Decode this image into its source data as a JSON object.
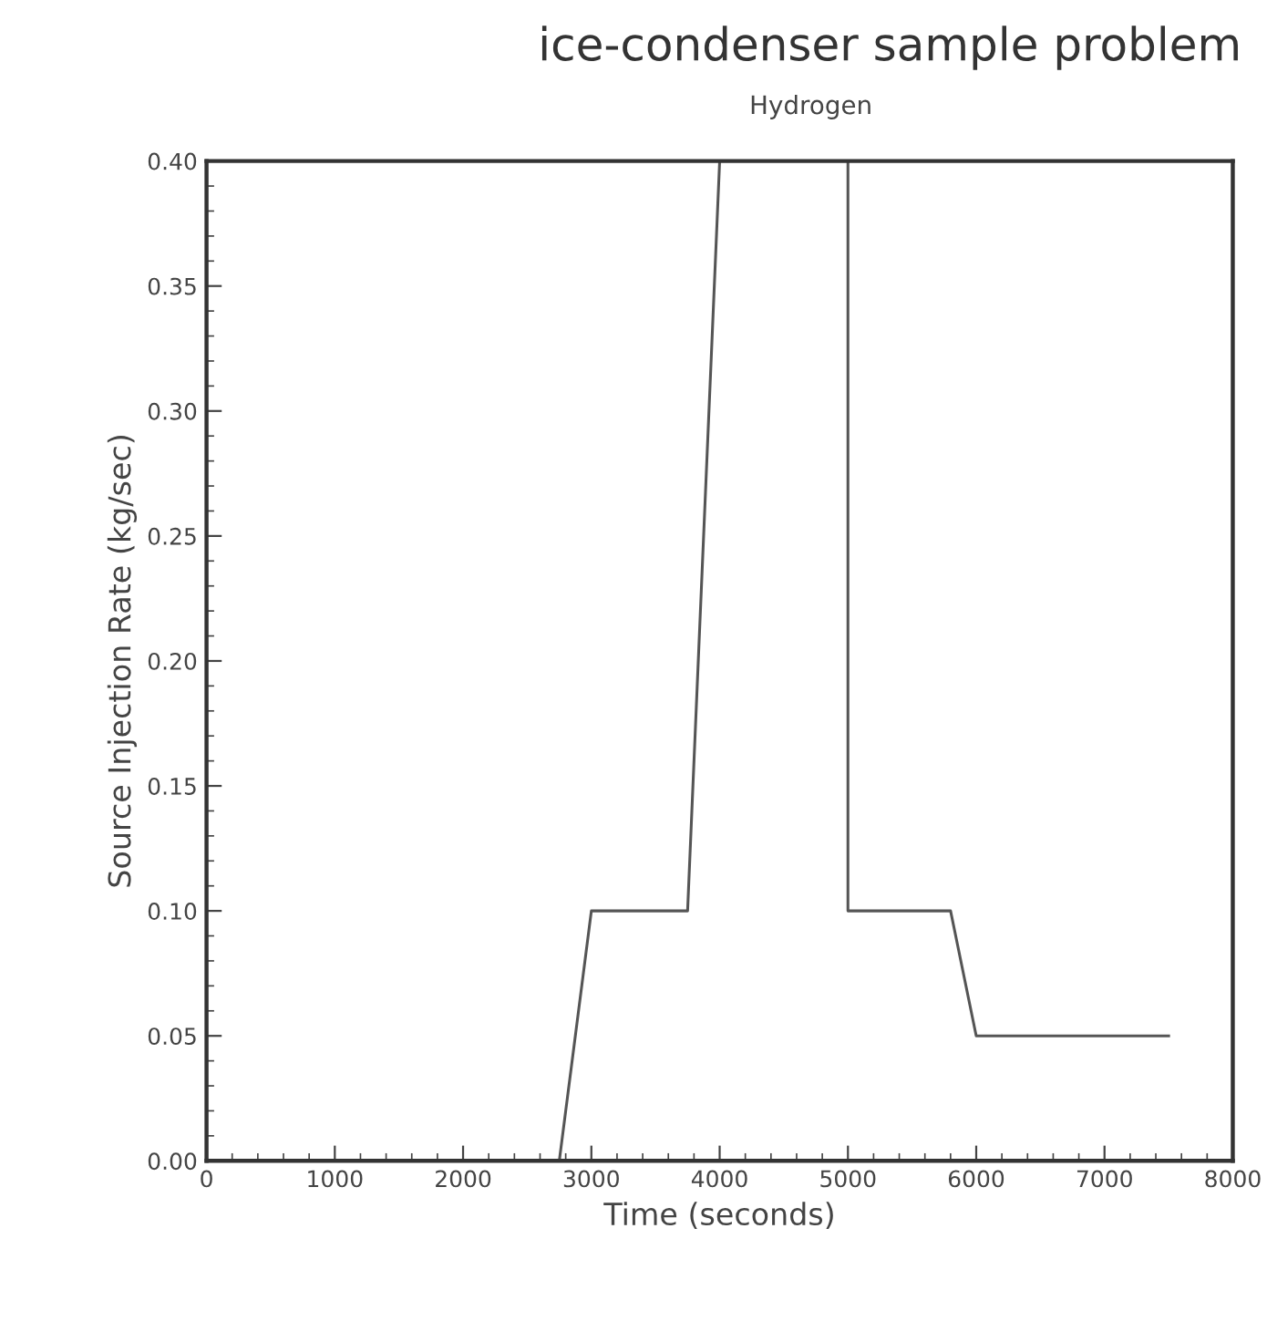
{
  "chart_data": {
    "type": "line",
    "title": "ice-condenser sample problem",
    "subtitle": "Hydrogen",
    "xlabel": "Time (seconds)",
    "ylabel": "Source Injection Rate (kg/sec)",
    "x": [
      2750,
      3000,
      3750,
      4000,
      4500,
      5000,
      5000,
      5800,
      6000,
      7500
    ],
    "series": [
      {
        "color": "#555555",
        "values": [
          0.0,
          0.1,
          0.1,
          0.4,
          null,
          0.4,
          0.1,
          0.1,
          0.05,
          0.05
        ]
      }
    ],
    "xlim": [
      0,
      8000
    ],
    "xticks": [
      0,
      1000,
      2000,
      3000,
      4000,
      5000,
      6000,
      7000,
      8000
    ],
    "ylim": [
      0,
      0.4
    ],
    "yticks": [
      {
        "value": 0,
        "label": "0.00"
      },
      {
        "value": 0.05,
        "label": "0.05"
      },
      {
        "value": 0.1,
        "label": "0.10"
      },
      {
        "value": 0.15,
        "label": "0.15"
      },
      {
        "value": 0.2,
        "label": "0.20"
      },
      {
        "value": 0.25,
        "label": "0.25"
      },
      {
        "value": 0.3,
        "label": "0.30"
      },
      {
        "value": 0.35,
        "label": "0.35"
      },
      {
        "value": 0.4,
        "label": "0.40"
      }
    ],
    "grid": false,
    "legend": false
  }
}
